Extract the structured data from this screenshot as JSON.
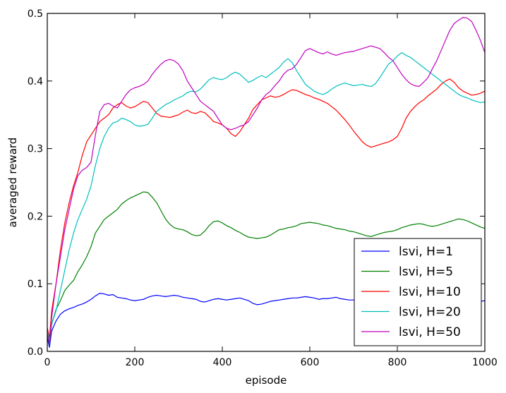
{
  "chart_data": {
    "type": "line",
    "title": "",
    "xlabel": "episode",
    "ylabel": "averaged reward",
    "xlim": [
      0,
      1000
    ],
    "ylim": [
      0,
      0.5
    ],
    "xticks": [
      0,
      200,
      400,
      600,
      800,
      1000
    ],
    "xtick_labels": [
      "0",
      "200",
      "400",
      "600",
      "800",
      "1000"
    ],
    "yticks": [
      0,
      0.1,
      0.2,
      0.3,
      0.4,
      0.5
    ],
    "ytick_labels": [
      "0.0",
      "0.1",
      "0.2",
      "0.3",
      "0.4",
      "0.5"
    ],
    "grid": false,
    "legend_position": "lower-right",
    "x": [
      0,
      5,
      10,
      20,
      30,
      40,
      50,
      60,
      70,
      80,
      90,
      100,
      110,
      120,
      130,
      140,
      150,
      160,
      170,
      180,
      190,
      200,
      210,
      220,
      230,
      240,
      250,
      260,
      270,
      280,
      290,
      300,
      310,
      320,
      330,
      340,
      350,
      360,
      370,
      380,
      390,
      400,
      410,
      420,
      430,
      440,
      450,
      460,
      470,
      480,
      490,
      500,
      510,
      520,
      530,
      540,
      550,
      560,
      570,
      580,
      590,
      600,
      610,
      620,
      630,
      640,
      650,
      660,
      670,
      680,
      690,
      700,
      710,
      720,
      730,
      740,
      750,
      760,
      770,
      780,
      790,
      800,
      810,
      820,
      830,
      840,
      850,
      860,
      870,
      880,
      890,
      900,
      910,
      920,
      930,
      940,
      950,
      960,
      970,
      980,
      990,
      1000
    ],
    "series": [
      {
        "name": "lsvi, H=1",
        "color": "#0000ff",
        "values": [
          0.02,
          0.006,
          0.03,
          0.045,
          0.055,
          0.06,
          0.063,
          0.065,
          0.068,
          0.07,
          0.073,
          0.077,
          0.082,
          0.086,
          0.085,
          0.083,
          0.084,
          0.08,
          0.079,
          0.078,
          0.076,
          0.075,
          0.076,
          0.077,
          0.08,
          0.082,
          0.083,
          0.082,
          0.081,
          0.082,
          0.083,
          0.082,
          0.08,
          0.079,
          0.078,
          0.077,
          0.074,
          0.073,
          0.075,
          0.077,
          0.078,
          0.077,
          0.076,
          0.077,
          0.078,
          0.079,
          0.077,
          0.075,
          0.071,
          0.069,
          0.07,
          0.072,
          0.074,
          0.075,
          0.076,
          0.077,
          0.078,
          0.079,
          0.079,
          0.08,
          0.081,
          0.08,
          0.079,
          0.077,
          0.078,
          0.078,
          0.079,
          0.08,
          0.078,
          0.077,
          0.076,
          0.076,
          0.077,
          0.078,
          0.079,
          0.078,
          0.077,
          0.076,
          0.075,
          0.074,
          0.075,
          0.076,
          0.077,
          0.078,
          0.077,
          0.076,
          0.075,
          0.074,
          0.073,
          0.072,
          0.072,
          0.073,
          0.074,
          0.075,
          0.076,
          0.075,
          0.074,
          0.073,
          0.072,
          0.073,
          0.074,
          0.075
        ]
      },
      {
        "name": "lsvi, H=5",
        "color": "#008000",
        "values": [
          0.025,
          0.01,
          0.04,
          0.062,
          0.075,
          0.09,
          0.098,
          0.105,
          0.118,
          0.128,
          0.14,
          0.155,
          0.175,
          0.185,
          0.195,
          0.2,
          0.205,
          0.21,
          0.218,
          0.223,
          0.227,
          0.23,
          0.233,
          0.236,
          0.235,
          0.228,
          0.22,
          0.208,
          0.196,
          0.188,
          0.183,
          0.181,
          0.18,
          0.177,
          0.173,
          0.171,
          0.172,
          0.178,
          0.186,
          0.192,
          0.193,
          0.19,
          0.186,
          0.183,
          0.179,
          0.176,
          0.172,
          0.169,
          0.168,
          0.167,
          0.168,
          0.169,
          0.172,
          0.176,
          0.18,
          0.181,
          0.183,
          0.184,
          0.186,
          0.189,
          0.19,
          0.191,
          0.19,
          0.189,
          0.187,
          0.186,
          0.184,
          0.182,
          0.181,
          0.18,
          0.178,
          0.177,
          0.175,
          0.173,
          0.171,
          0.17,
          0.172,
          0.174,
          0.176,
          0.177,
          0.178,
          0.18,
          0.183,
          0.185,
          0.187,
          0.188,
          0.189,
          0.188,
          0.186,
          0.185,
          0.186,
          0.188,
          0.19,
          0.192,
          0.194,
          0.196,
          0.195,
          0.193,
          0.19,
          0.187,
          0.184,
          0.182
        ]
      },
      {
        "name": "lsvi, H=10",
        "color": "#ff0000",
        "values": [
          0.035,
          0.02,
          0.06,
          0.1,
          0.15,
          0.19,
          0.22,
          0.245,
          0.265,
          0.29,
          0.31,
          0.32,
          0.33,
          0.34,
          0.345,
          0.35,
          0.36,
          0.365,
          0.368,
          0.363,
          0.36,
          0.362,
          0.366,
          0.37,
          0.368,
          0.36,
          0.352,
          0.348,
          0.347,
          0.346,
          0.348,
          0.35,
          0.354,
          0.357,
          0.353,
          0.352,
          0.355,
          0.353,
          0.347,
          0.34,
          0.338,
          0.335,
          0.33,
          0.322,
          0.318,
          0.325,
          0.335,
          0.345,
          0.358,
          0.365,
          0.372,
          0.375,
          0.378,
          0.376,
          0.377,
          0.38,
          0.384,
          0.387,
          0.386,
          0.383,
          0.38,
          0.378,
          0.375,
          0.373,
          0.37,
          0.367,
          0.362,
          0.357,
          0.35,
          0.343,
          0.335,
          0.326,
          0.318,
          0.31,
          0.305,
          0.302,
          0.304,
          0.306,
          0.308,
          0.31,
          0.313,
          0.318,
          0.33,
          0.345,
          0.355,
          0.362,
          0.368,
          0.372,
          0.378,
          0.383,
          0.388,
          0.395,
          0.4,
          0.403,
          0.398,
          0.39,
          0.385,
          0.382,
          0.379,
          0.38,
          0.382,
          0.385
        ]
      },
      {
        "name": "lsvi, H=20",
        "color": "#00bfbf",
        "values": [
          0.03,
          0.015,
          0.04,
          0.06,
          0.09,
          0.12,
          0.15,
          0.175,
          0.195,
          0.21,
          0.225,
          0.245,
          0.275,
          0.3,
          0.318,
          0.33,
          0.338,
          0.34,
          0.345,
          0.343,
          0.34,
          0.335,
          0.333,
          0.334,
          0.336,
          0.345,
          0.355,
          0.36,
          0.365,
          0.368,
          0.372,
          0.375,
          0.378,
          0.383,
          0.385,
          0.384,
          0.388,
          0.395,
          0.402,
          0.405,
          0.403,
          0.402,
          0.405,
          0.41,
          0.413,
          0.41,
          0.404,
          0.398,
          0.401,
          0.405,
          0.408,
          0.405,
          0.41,
          0.415,
          0.42,
          0.428,
          0.433,
          0.427,
          0.415,
          0.405,
          0.395,
          0.39,
          0.385,
          0.382,
          0.38,
          0.383,
          0.388,
          0.392,
          0.395,
          0.397,
          0.395,
          0.393,
          0.394,
          0.395,
          0.393,
          0.392,
          0.396,
          0.405,
          0.415,
          0.425,
          0.43,
          0.437,
          0.442,
          0.438,
          0.435,
          0.43,
          0.425,
          0.42,
          0.415,
          0.41,
          0.405,
          0.4,
          0.395,
          0.39,
          0.385,
          0.38,
          0.377,
          0.375,
          0.372,
          0.37,
          0.368,
          0.369
        ]
      },
      {
        "name": "lsvi, H=50",
        "color": "#bf00bf",
        "values": [
          0.025,
          0.012,
          0.05,
          0.1,
          0.14,
          0.18,
          0.21,
          0.24,
          0.26,
          0.268,
          0.272,
          0.28,
          0.32,
          0.355,
          0.365,
          0.367,
          0.363,
          0.36,
          0.37,
          0.38,
          0.387,
          0.39,
          0.392,
          0.395,
          0.4,
          0.41,
          0.418,
          0.425,
          0.43,
          0.432,
          0.43,
          0.425,
          0.415,
          0.4,
          0.39,
          0.38,
          0.37,
          0.365,
          0.36,
          0.355,
          0.345,
          0.335,
          0.33,
          0.328,
          0.33,
          0.333,
          0.335,
          0.34,
          0.35,
          0.36,
          0.372,
          0.38,
          0.385,
          0.393,
          0.4,
          0.41,
          0.416,
          0.418,
          0.425,
          0.435,
          0.445,
          0.448,
          0.445,
          0.442,
          0.44,
          0.443,
          0.44,
          0.438,
          0.44,
          0.442,
          0.443,
          0.444,
          0.446,
          0.448,
          0.45,
          0.452,
          0.45,
          0.448,
          0.442,
          0.435,
          0.43,
          0.42,
          0.41,
          0.402,
          0.396,
          0.393,
          0.392,
          0.398,
          0.405,
          0.418,
          0.43,
          0.445,
          0.46,
          0.475,
          0.485,
          0.49,
          0.494,
          0.493,
          0.488,
          0.475,
          0.46,
          0.442
        ]
      }
    ]
  }
}
